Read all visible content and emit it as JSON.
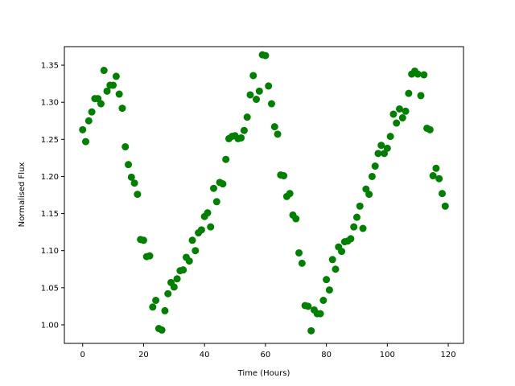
{
  "chart_data": {
    "type": "scatter",
    "title": "",
    "xlabel": "Time (Hours)",
    "ylabel": "Normalised Flux",
    "xlim": [
      -6,
      125
    ],
    "ylim": [
      0.975,
      1.375
    ],
    "xticks": [
      0,
      20,
      40,
      60,
      80,
      100,
      120
    ],
    "xtick_labels": [
      "0",
      "20",
      "40",
      "60",
      "80",
      "100",
      "120"
    ],
    "yticks": [
      1.0,
      1.05,
      1.1,
      1.15,
      1.2,
      1.25,
      1.3,
      1.35
    ],
    "ytick_labels": [
      "1.00",
      "1.05",
      "1.10",
      "1.15",
      "1.20",
      "1.25",
      "1.30",
      "1.35"
    ],
    "grid": false,
    "legend": null,
    "marker_color": "#008000",
    "series": [
      {
        "x": [
          0,
          1,
          2,
          3,
          4,
          5,
          6,
          7,
          8,
          9,
          10,
          11,
          12,
          13,
          14,
          15,
          16,
          17,
          18,
          19,
          20,
          21,
          22,
          23,
          24,
          25,
          26,
          27,
          28,
          29,
          30,
          31,
          32,
          33,
          34,
          35,
          36,
          37,
          38,
          39,
          40,
          41,
          42,
          43,
          44,
          45,
          46,
          47,
          48,
          49,
          50,
          51,
          52,
          53,
          54,
          55,
          56,
          57,
          58,
          59,
          60,
          61,
          62,
          63,
          64,
          65,
          66,
          67,
          68,
          69,
          70,
          71,
          72,
          73,
          74,
          75,
          76,
          77,
          78,
          79,
          80,
          81,
          82,
          83,
          84,
          85,
          86,
          87,
          88,
          89,
          90,
          91,
          92,
          93,
          94,
          95,
          96,
          97,
          98,
          99,
          100,
          101,
          102,
          103,
          104,
          105,
          106,
          107,
          108,
          109,
          110,
          111,
          112,
          113,
          114,
          115,
          116,
          117,
          118,
          119
        ],
        "y": [
          1.263,
          1.247,
          1.275,
          1.287,
          1.305,
          1.305,
          1.298,
          1.343,
          1.315,
          1.323,
          1.323,
          1.335,
          1.311,
          1.292,
          1.24,
          1.216,
          1.199,
          1.191,
          1.176,
          1.115,
          1.114,
          1.092,
          1.093,
          1.024,
          1.033,
          0.995,
          0.993,
          1.019,
          1.042,
          1.057,
          1.051,
          1.062,
          1.073,
          1.074,
          1.091,
          1.086,
          1.114,
          1.1,
          1.124,
          1.128,
          1.146,
          1.151,
          1.132,
          1.184,
          1.166,
          1.192,
          1.19,
          1.223,
          1.251,
          1.254,
          1.255,
          1.251,
          1.252,
          1.262,
          1.28,
          1.31,
          1.336,
          1.304,
          1.315,
          1.364,
          1.363,
          1.322,
          1.298,
          1.267,
          1.257,
          1.202,
          1.201,
          1.173,
          1.177,
          1.148,
          1.143,
          1.097,
          1.083,
          1.026,
          1.025,
          0.992,
          1.02,
          1.015,
          1.015,
          1.033,
          1.061,
          1.047,
          1.088,
          1.075,
          1.105,
          1.099,
          1.112,
          1.113,
          1.116,
          1.132,
          1.145,
          1.16,
          1.13,
          1.183,
          1.176,
          1.2,
          1.214,
          1.231,
          1.242,
          1.231,
          1.238,
          1.254,
          1.284,
          1.272,
          1.291,
          1.279,
          1.288,
          1.312,
          1.338,
          1.342,
          1.338,
          1.309,
          1.337,
          1.265,
          1.263,
          1.201,
          1.211,
          1.197,
          1.177,
          1.16
        ]
      }
    ]
  }
}
